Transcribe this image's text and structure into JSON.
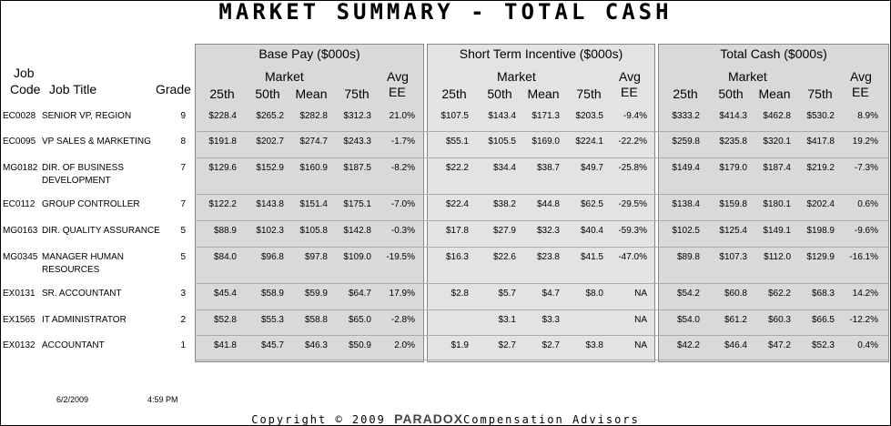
{
  "title": "MARKET SUMMARY - TOTAL CASH",
  "left_headers": {
    "job_code_line1": "Job",
    "job_code_line2": "Code",
    "job_title": "Job Title",
    "grade": "Grade"
  },
  "groups": [
    {
      "title": "Base Pay ($000s)",
      "market_label": "Market",
      "avg_label1": "Avg",
      "avg_label2": "EE",
      "cols": [
        "25th",
        "50th",
        "Mean",
        "75th"
      ]
    },
    {
      "title": "Short Term Incentive ($000s)",
      "market_label": "Market",
      "avg_label1": "Avg",
      "avg_label2": "EE",
      "cols": [
        "25th",
        "50th",
        "Mean",
        "75th"
      ]
    },
    {
      "title": "Total Cash ($000s)",
      "market_label": "Market",
      "avg_label1": "Avg",
      "avg_label2": "EE",
      "cols": [
        "25th",
        "50th",
        "Mean",
        "75th"
      ]
    }
  ],
  "rows": [
    {
      "code": "EC0028",
      "title": "SENIOR VP, REGION",
      "title2": "",
      "grade": "9",
      "base": [
        "$228.4",
        "$265.2",
        "$282.8",
        "$312.3",
        "21.0%"
      ],
      "sti": [
        "$107.5",
        "$143.4",
        "$171.3",
        "$203.5",
        "-9.4%"
      ],
      "total": [
        "$333.2",
        "$414.3",
        "$462.8",
        "$530.2",
        "8.9%"
      ]
    },
    {
      "code": "EC0095",
      "title": "VP SALES & MARKETING",
      "title2": "",
      "grade": "8",
      "base": [
        "$191.8",
        "$202.7",
        "$274.7",
        "$243.3",
        "-1.7%"
      ],
      "sti": [
        "$55.1",
        "$105.5",
        "$169.0",
        "$224.1",
        "-22.2%"
      ],
      "total": [
        "$259.8",
        "$235.8",
        "$320.1",
        "$417.8",
        "19.2%"
      ]
    },
    {
      "code": "MG0182",
      "title": "DIR. OF BUSINESS",
      "title2": "DEVELOPMENT",
      "grade": "7",
      "base": [
        "$129.6",
        "$152.9",
        "$160.9",
        "$187.5",
        "-8.2%"
      ],
      "sti": [
        "$22.2",
        "$34.4",
        "$38.7",
        "$49.7",
        "-25.8%"
      ],
      "total": [
        "$149.4",
        "$179.0",
        "$187.4",
        "$219.2",
        "-7.3%"
      ]
    },
    {
      "code": "EC0112",
      "title": "GROUP CONTROLLER",
      "title2": "",
      "grade": "7",
      "base": [
        "$122.2",
        "$143.8",
        "$151.4",
        "$175.1",
        "-7.0%"
      ],
      "sti": [
        "$22.4",
        "$38.2",
        "$44.8",
        "$62.5",
        "-29.5%"
      ],
      "total": [
        "$138.4",
        "$159.8",
        "$180.1",
        "$202.4",
        "0.6%"
      ]
    },
    {
      "code": "MG0163",
      "title": "DIR. QUALITY ASSURANCE",
      "title2": "",
      "grade": "5",
      "base": [
        "$88.9",
        "$102.3",
        "$105.8",
        "$142.8",
        "-0.3%"
      ],
      "sti": [
        "$17.8",
        "$27.9",
        "$32.3",
        "$40.4",
        "-59.3%"
      ],
      "total": [
        "$102.5",
        "$125.4",
        "$149.1",
        "$198.9",
        "-9.6%"
      ]
    },
    {
      "code": "MG0345",
      "title": "MANAGER HUMAN",
      "title2": "RESOURCES",
      "grade": "5",
      "base": [
        "$84.0",
        "$96.8",
        "$97.8",
        "$109.0",
        "-19.5%"
      ],
      "sti": [
        "$16.3",
        "$22.6",
        "$23.8",
        "$41.5",
        "-47.0%"
      ],
      "total": [
        "$89.8",
        "$107.3",
        "$112.0",
        "$129.9",
        "-16.1%"
      ]
    },
    {
      "code": "EX0131",
      "title": "SR. ACCOUNTANT",
      "title2": "",
      "grade": "3",
      "base": [
        "$45.4",
        "$58.9",
        "$59.9",
        "$64.7",
        "17.9%"
      ],
      "sti": [
        "$2.8",
        "$5.7",
        "$4.7",
        "$8.0",
        "NA"
      ],
      "total": [
        "$54.2",
        "$60.8",
        "$62.2",
        "$68.3",
        "14.2%"
      ]
    },
    {
      "code": "EX1565",
      "title": "IT ADMINISTRATOR",
      "title2": "",
      "grade": "2",
      "base": [
        "$52.8",
        "$55.3",
        "$58.8",
        "$65.0",
        "-2.8%"
      ],
      "sti": [
        "",
        "$3.1",
        "$3.3",
        "",
        "NA"
      ],
      "total": [
        "$54.0",
        "$61.2",
        "$60.3",
        "$66.5",
        "-12.2%"
      ]
    },
    {
      "code": "EX0132",
      "title": "ACCOUNTANT",
      "title2": "",
      "grade": "1",
      "base": [
        "$41.8",
        "$45.7",
        "$46.3",
        "$50.9",
        "2.0%"
      ],
      "sti": [
        "$1.9",
        "$2.7",
        "$2.7",
        "$3.8",
        "NA"
      ],
      "total": [
        "$42.2",
        "$46.4",
        "$47.2",
        "$52.3",
        "0.4%"
      ]
    }
  ],
  "footer": {
    "date": "6/2/2009",
    "time": "4:59 PM",
    "copyright_pre": "Copyright © 2009",
    "brand": "PARADOX",
    "copyright_post": "Compensation Advisors"
  }
}
